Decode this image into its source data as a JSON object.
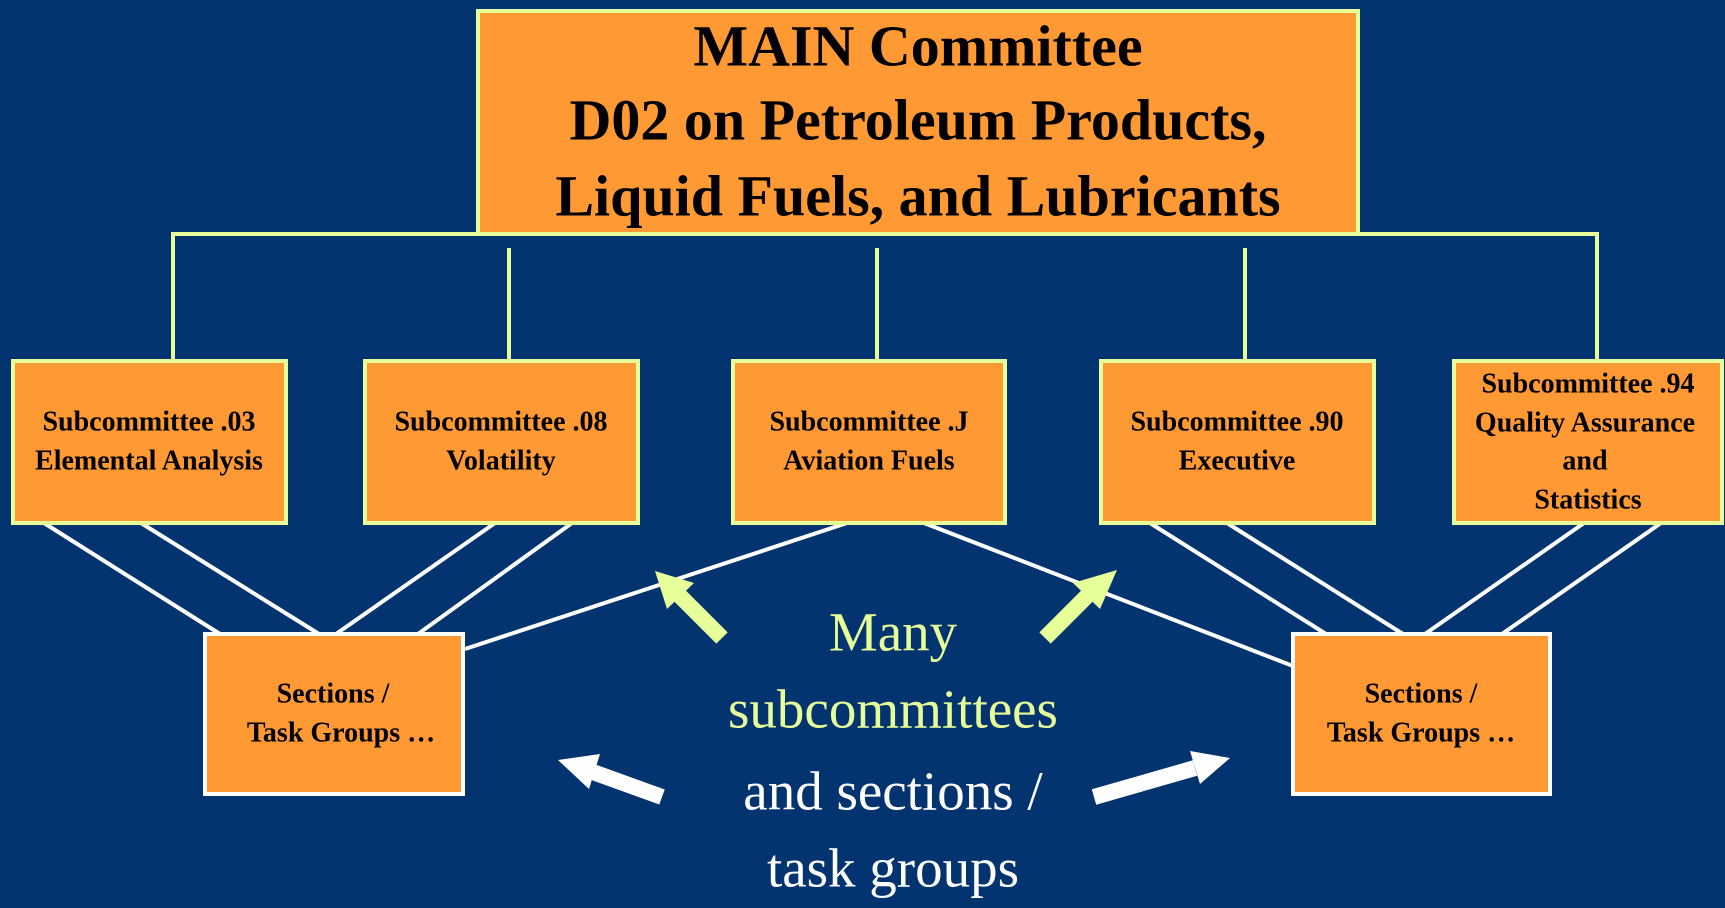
{
  "main": {
    "lines": [
      "MAIN Committee",
      "D02 on Petroleum Products,",
      "Liquid Fuels, and Lubricants"
    ]
  },
  "subcommittees": [
    {
      "lines": [
        "Subcommittee .03",
        "Elemental Analysis"
      ]
    },
    {
      "lines": [
        "Subcommittee .08",
        "Volatility"
      ]
    },
    {
      "lines": [
        "Subcommittee .J",
        "Aviation Fuels"
      ]
    },
    {
      "lines": [
        "Subcommittee .90",
        "Executive"
      ]
    },
    {
      "lines": [
        "Subcommittee .94",
        "Quality Assurance",
        "and",
        "Statistics"
      ]
    }
  ],
  "sections": [
    {
      "lines": [
        "Sections /",
        "Task Groups …"
      ]
    },
    {
      "lines": [
        "Sections /",
        "Task Groups …"
      ]
    }
  ],
  "note": {
    "lines": [
      "Many",
      "subcommittees",
      "and sections /",
      "task groups"
    ]
  }
}
